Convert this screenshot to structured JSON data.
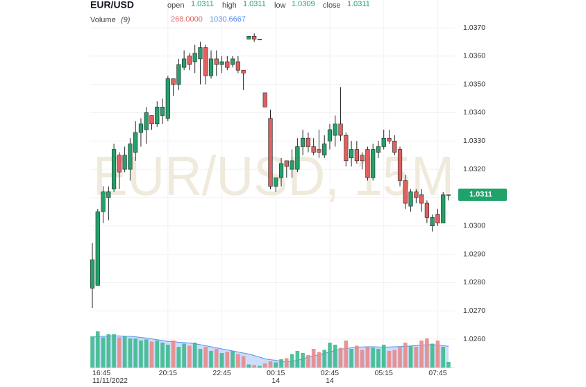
{
  "chart_data": {
    "type": "candlestick",
    "title": "EUR/USD",
    "watermark": "EUR/USD, 15M",
    "readout": {
      "labels": [
        "open",
        "high",
        "low",
        "close"
      ],
      "values": [
        1.0311,
        1.0311,
        1.0309,
        1.0311
      ]
    },
    "volume_label": "Volume",
    "volume_period": "(9)",
    "volume_value": {
      "value": 268,
      "label": "268.0000"
    },
    "volume_ma_value": 1030.6667,
    "last_price": 1.0311,
    "up_color": "#26a069",
    "down_color": "#e06060",
    "volume_up_color": "#3dbb8c",
    "volume_down_color": "#e88a8a",
    "volume_ma_color": "#5b8def",
    "watermark_color": "#efeadb",
    "readout_value_color": "#1fa36a",
    "grid": true,
    "ylim": [
      1.026,
      1.037
    ],
    "yticks": [
      {
        "value": 1.037,
        "label": "1.0370"
      },
      {
        "value": 1.036,
        "label": "1.0360"
      },
      {
        "value": 1.035,
        "label": "1.0350"
      },
      {
        "value": 1.034,
        "label": "1.0340"
      },
      {
        "value": 1.033,
        "label": "1.0330"
      },
      {
        "value": 1.032,
        "label": "1.0320"
      },
      {
        "value": 1.031,
        "label": "1.0310"
      },
      {
        "value": 1.03,
        "label": "1.0300"
      },
      {
        "value": 1.029,
        "label": "1.0290"
      },
      {
        "value": 1.028,
        "label": "1.0280"
      },
      {
        "value": 1.027,
        "label": "1.0270"
      },
      {
        "value": 1.026,
        "label": "1.0260"
      }
    ],
    "volume_ylim": [
      0,
      1800
    ],
    "categories": [
      "16:45",
      null,
      null,
      null,
      null,
      null,
      null,
      null,
      null,
      null,
      null,
      null,
      null,
      null,
      "20:15",
      null,
      null,
      null,
      null,
      null,
      null,
      null,
      null,
      null,
      "22:45",
      null,
      null,
      null,
      null,
      null,
      null,
      null,
      null,
      null,
      "00:15",
      null,
      null,
      null,
      null,
      null,
      null,
      null,
      null,
      null,
      "02:45",
      null,
      null,
      null,
      null,
      null,
      null,
      null,
      null,
      null,
      "05:15",
      null,
      null,
      null,
      null,
      null,
      null,
      null,
      null,
      null,
      "07:45",
      null,
      null
    ],
    "dates": [
      "11/11/2022",
      null,
      null,
      null,
      null,
      null,
      null,
      null,
      null,
      null,
      null,
      null,
      null,
      null,
      null,
      null,
      null,
      null,
      null,
      null,
      null,
      null,
      null,
      null,
      null,
      null,
      null,
      null,
      null,
      null,
      null,
      null,
      null,
      null,
      "14",
      null,
      null,
      null,
      null,
      null,
      null,
      null,
      null,
      null,
      "14",
      null,
      null,
      null,
      null,
      null,
      null,
      null,
      null,
      null,
      null,
      null,
      null,
      null,
      null,
      null,
      null,
      null,
      null,
      null,
      null,
      null,
      null
    ],
    "open": [
      1.0278,
      1.0279,
      1.0305,
      1.031,
      1.0313,
      1.0325,
      1.032,
      1.032,
      1.0326,
      1.0333,
      1.0334,
      1.0339,
      1.0336,
      1.0339,
      1.0338,
      1.0352,
      1.035,
      1.0356,
      1.036,
      1.0358,
      1.0359,
      1.0363,
      1.0353,
      1.0359,
      1.0357,
      1.0358,
      1.0357,
      1.0358,
      1.0355,
      1.0366,
      1.0367,
      1.0366,
      1.0347,
      1.0338,
      1.0314,
      1.0317,
      1.0323,
      1.032,
      1.032,
      1.0328,
      1.0331,
      1.0328,
      1.0327,
      1.0325,
      1.033,
      1.0332,
      1.0336,
      1.0332,
      1.0324,
      1.0327,
      1.0325,
      1.0327,
      1.0317,
      1.0326,
      1.0328,
      1.0331,
      1.033,
      1.0327,
      1.0316,
      1.0307,
      1.0312,
      1.0311,
      1.0308,
      1.03,
      1.0304,
      1.0301,
      1.0311
    ],
    "high": [
      1.0294,
      1.0306,
      1.0314,
      1.0314,
      1.0329,
      1.0326,
      1.0328,
      1.0331,
      1.0337,
      1.0338,
      1.0342,
      1.0339,
      1.0344,
      1.0345,
      1.0353,
      1.0352,
      1.0359,
      1.0362,
      1.0361,
      1.0364,
      1.0365,
      1.0364,
      1.0362,
      1.0362,
      1.036,
      1.036,
      1.036,
      1.036,
      1.0355,
      1.0367,
      1.0368,
      1.0366,
      1.0347,
      1.0341,
      1.0317,
      1.0324,
      1.0323,
      1.0327,
      1.0331,
      1.0334,
      1.0333,
      1.0331,
      1.0334,
      1.0332,
      1.0336,
      1.0339,
      1.0349,
      1.0333,
      1.033,
      1.033,
      1.0326,
      1.0328,
      1.0329,
      1.033,
      1.0334,
      1.0334,
      1.0332,
      1.0328,
      1.0318,
      1.0313,
      1.0313,
      1.0313,
      1.0309,
      1.0304,
      1.0306,
      1.0312,
      1.0311
    ],
    "low": [
      1.0271,
      1.0279,
      1.0301,
      1.0302,
      1.0312,
      1.0313,
      1.0319,
      1.0316,
      1.0323,
      1.0328,
      1.0329,
      1.0334,
      1.0335,
      1.0336,
      1.0337,
      1.0346,
      1.0348,
      1.0355,
      1.0355,
      1.0354,
      1.035,
      1.035,
      1.0352,
      1.0353,
      1.0354,
      1.0355,
      1.0356,
      1.0354,
      1.0348,
      1.0366,
      1.0365,
      1.0366,
      1.0342,
      1.0313,
      1.0312,
      1.0314,
      1.0317,
      1.0317,
      1.0319,
      1.0325,
      1.0326,
      1.0325,
      1.0324,
      1.0324,
      1.0327,
      1.0328,
      1.033,
      1.0321,
      1.0321,
      1.0322,
      1.032,
      1.0316,
      1.0316,
      1.0324,
      1.0327,
      1.0329,
      1.0325,
      1.0314,
      1.0306,
      1.0305,
      1.0308,
      1.0305,
      1.0301,
      1.0298,
      1.03,
      1.0301,
      1.0309
    ],
    "close": [
      1.0288,
      1.0305,
      1.0312,
      1.0312,
      1.0327,
      1.0319,
      1.0325,
      1.0329,
      1.0333,
      1.0336,
      1.034,
      1.0336,
      1.0342,
      1.0342,
      1.0352,
      1.035,
      1.0357,
      1.0359,
      1.0357,
      1.0361,
      1.0363,
      1.0353,
      1.0359,
      1.0357,
      1.0358,
      1.0356,
      1.0359,
      1.0355,
      1.0354,
      1.0367,
      1.0366,
      1.0366,
      1.0342,
      1.0314,
      1.0317,
      1.0322,
      1.0321,
      1.0323,
      1.0328,
      1.0331,
      1.0328,
      1.0326,
      1.0326,
      1.0329,
      1.0334,
      1.0336,
      1.0332,
      1.0323,
      1.0327,
      1.0323,
      1.0323,
      1.0317,
      1.0327,
      1.0328,
      1.0331,
      1.033,
      1.0326,
      1.0316,
      1.0308,
      1.0312,
      1.031,
      1.0308,
      1.0303,
      1.0303,
      1.0301,
      1.0311,
      1.0311
    ],
    "volume": [
      1500,
      1750,
      1450,
      1600,
      1600,
      1450,
      1500,
      1400,
      1400,
      1300,
      1350,
      1250,
      1300,
      1200,
      1100,
      1300,
      1000,
      1150,
      1050,
      1200,
      900,
      1000,
      800,
      900,
      700,
      750,
      800,
      650,
      550,
      150,
      120,
      80,
      200,
      300,
      250,
      400,
      450,
      650,
      800,
      700,
      600,
      900,
      750,
      850,
      1200,
      1100,
      950,
      1300,
      900,
      1050,
      850,
      1000,
      950,
      900,
      1100,
      800,
      850,
      1000,
      1200,
      1050,
      1000,
      1300,
      1400,
      1150,
      1300,
      1000,
      268
    ],
    "volume_ma": [
      1450,
      1500,
      1500,
      1520,
      1530,
      1520,
      1510,
      1500,
      1480,
      1450,
      1420,
      1380,
      1340,
      1300,
      1260,
      1250,
      1220,
      1200,
      1180,
      1150,
      1100,
      1050,
      1000,
      950,
      900,
      850,
      800,
      750,
      700,
      650,
      580,
      500,
      420,
      380,
      350,
      300,
      280,
      300,
      350,
      420,
      500,
      560,
      620,
      680,
      750,
      820,
      880,
      920,
      950,
      980,
      990,
      1000,
      1000,
      990,
      980,
      990,
      1000,
      1010,
      1020,
      1040,
      1060,
      1080,
      1100,
      1100,
      1080,
      1050,
      1030.6667
    ]
  }
}
